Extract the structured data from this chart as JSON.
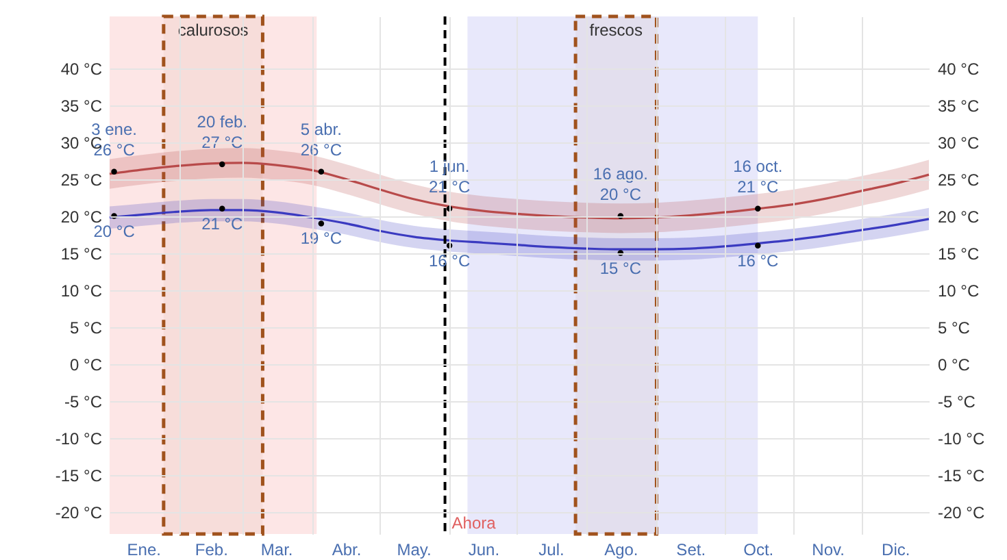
{
  "chart_data": {
    "type": "line",
    "x": [
      "--01-01",
      "--01-16",
      "--02-01",
      "--02-15",
      "--03-01",
      "--03-16",
      "--04-01",
      "--04-16",
      "--05-01",
      "--05-16",
      "--06-01",
      "--06-16",
      "--07-01",
      "--07-16",
      "--08-01",
      "--08-16",
      "--09-01",
      "--09-16",
      "--10-01",
      "--10-16",
      "--11-01",
      "--11-16",
      "--12-01",
      "--12-16",
      "--12-31"
    ],
    "series": [
      {
        "color": "#b84a4a",
        "values": [
          25.7,
          26.3,
          26.8,
          27.1,
          27.2,
          26.9,
          26.2,
          25.0,
          23.6,
          22.3,
          21.3,
          20.7,
          20.3,
          20.0,
          19.8,
          19.7,
          19.8,
          20.1,
          20.5,
          21.0,
          21.6,
          22.4,
          23.4,
          24.4,
          25.6
        ],
        "lower": [
          23.7,
          24.3,
          24.8,
          25.1,
          25.2,
          24.9,
          24.2,
          23.0,
          21.6,
          20.3,
          19.3,
          18.7,
          18.3,
          18.0,
          17.8,
          17.7,
          17.8,
          18.1,
          18.5,
          19.0,
          19.6,
          20.4,
          21.4,
          22.4,
          23.6
        ],
        "upper": [
          27.7,
          28.3,
          28.8,
          29.1,
          29.2,
          28.9,
          28.2,
          27.0,
          25.6,
          24.3,
          23.3,
          22.7,
          22.3,
          22.0,
          21.8,
          21.7,
          21.8,
          22.1,
          22.5,
          23.0,
          23.6,
          24.4,
          25.4,
          26.4,
          27.6
        ]
      },
      {
        "color": "#3a3ac0",
        "values": [
          19.8,
          20.2,
          20.6,
          20.8,
          20.8,
          20.5,
          19.8,
          19.0,
          18.0,
          17.2,
          16.7,
          16.4,
          16.1,
          15.8,
          15.6,
          15.5,
          15.5,
          15.6,
          15.9,
          16.3,
          16.8,
          17.4,
          18.1,
          18.8,
          19.6
        ],
        "lower": [
          18.3,
          18.7,
          19.1,
          19.3,
          19.3,
          19.0,
          18.3,
          17.5,
          16.5,
          15.7,
          15.2,
          14.9,
          14.6,
          14.3,
          14.1,
          14.0,
          14.0,
          14.1,
          14.4,
          14.8,
          15.3,
          15.9,
          16.6,
          17.3,
          18.1
        ],
        "upper": [
          21.3,
          21.7,
          22.1,
          22.3,
          22.3,
          22.0,
          21.3,
          20.5,
          19.5,
          18.7,
          18.2,
          17.9,
          17.6,
          17.3,
          17.1,
          17.0,
          17.0,
          17.1,
          17.4,
          17.8,
          18.3,
          18.9,
          19.6,
          20.3,
          21.1
        ]
      },
      {
        "type": "scatter",
        "color": "#000000",
        "marker": "circle",
        "x": [
          "--01-03",
          "--02-20",
          "--04-05",
          "--06-01",
          "--08-16",
          "--10-16"
        ],
        "values": [
          26,
          27,
          26,
          21,
          20,
          21
        ]
      },
      {
        "type": "scatter",
        "color": "#000000",
        "marker": "circle",
        "x": [
          "--01-03",
          "--02-20",
          "--04-05",
          "--06-01",
          "--08-16",
          "--10-16"
        ],
        "values": [
          20,
          21,
          19,
          16,
          15,
          16
        ]
      }
    ],
    "xlim": [
      "--01-01",
      "--12-31"
    ],
    "xticks": [
      {
        "value": "--01-16",
        "label": "Ene."
      },
      {
        "value": "--02-01",
        "label": null
      },
      {
        "value": "--02-15",
        "label": "Feb."
      },
      {
        "value": "--03-01",
        "label": null
      },
      {
        "value": "--03-16",
        "label": "Mar."
      },
      {
        "value": "--04-01",
        "label": null
      },
      {
        "value": "--04-16",
        "label": "Abr."
      },
      {
        "value": "--05-01",
        "label": null
      },
      {
        "value": "--05-16",
        "label": "May."
      },
      {
        "value": "--06-01",
        "label": null
      },
      {
        "value": "--06-16",
        "label": "Jun."
      },
      {
        "value": "--07-01",
        "label": null
      },
      {
        "value": "--07-16",
        "label": "Jul."
      },
      {
        "value": "--08-01",
        "label": null
      },
      {
        "value": "--08-16",
        "label": "Ago."
      },
      {
        "value": "--09-01",
        "label": null
      },
      {
        "value": "--09-16",
        "label": "Set."
      },
      {
        "value": "--10-01",
        "label": null
      },
      {
        "value": "--10-16",
        "label": "Oct."
      },
      {
        "value": "--11-01",
        "label": null
      },
      {
        "value": "--11-16",
        "label": "Nov."
      },
      {
        "value": "--12-01",
        "label": null
      },
      {
        "value": "--12-16",
        "label": "Dic."
      }
    ],
    "ylim": [
      -23,
      47
    ],
    "yticks": [
      {
        "value": -20,
        "label": "-20 °C"
      },
      {
        "value": -15,
        "label": "-15 °C"
      },
      {
        "value": -10,
        "label": "-10 °C"
      },
      {
        "value": -5,
        "label": "-5 °C"
      },
      {
        "value": 0,
        "label": "0 °C"
      },
      {
        "value": 5,
        "label": "5 °C"
      },
      {
        "value": 10,
        "label": "10 °C"
      },
      {
        "value": 15,
        "label": "15 °C"
      },
      {
        "value": 20,
        "label": "20 °C"
      },
      {
        "value": 25,
        "label": "25 °C"
      },
      {
        "value": 30,
        "label": "30 °C"
      },
      {
        "value": 35,
        "label": "35 °C"
      },
      {
        "value": 40,
        "label": "40 °C"
      }
    ],
    "y2lim": [
      -23,
      47
    ],
    "y2ticks": [
      {
        "value": -20,
        "label": "-20 °C"
      },
      {
        "value": -15,
        "label": "-15 °C"
      },
      {
        "value": -10,
        "label": "-10 °C"
      },
      {
        "value": -5,
        "label": "-5 °C"
      },
      {
        "value": 0,
        "label": "0 °C"
      },
      {
        "value": 5,
        "label": "5 °C"
      },
      {
        "value": 10,
        "label": "10 °C"
      },
      {
        "value": 15,
        "label": "15 °C"
      },
      {
        "value": 20,
        "label": "20 °C"
      },
      {
        "value": 25,
        "label": "25 °C"
      },
      {
        "value": 30,
        "label": "30 °C"
      },
      {
        "value": 35,
        "label": "35 °C"
      },
      {
        "value": 40,
        "label": "40 °C"
      }
    ],
    "grid": true,
    "bands": [
      {
        "axis": "x",
        "from": "--01-01",
        "to": "--04-03",
        "color": "#fde6e6"
      },
      {
        "axis": "x",
        "from": "--06-09",
        "to": "--10-16",
        "color": "#e8e8fb"
      },
      {
        "axis": "x",
        "from": "--01-25",
        "to": "--03-10",
        "label": "calurosos",
        "color": "#a0521d"
      },
      {
        "axis": "x",
        "from": "--07-27",
        "to": "--09-01",
        "label": "frescos",
        "color": "#a0521d"
      }
    ],
    "ref_lines": [
      {
        "axis": "x",
        "value": "--05-30",
        "label": "Ahora",
        "color": "#000000",
        "line_style": "dashed"
      }
    ],
    "annotations": [
      {
        "text": "3 ene.\n26 °C",
        "x": "--01-03",
        "y": 26
      },
      {
        "text": "20 feb.\n27 °C",
        "x": "--02-20",
        "y": 27
      },
      {
        "text": "5 abr.\n26 °C",
        "x": "--04-05",
        "y": 26
      },
      {
        "text": "1 jun.\n21 °C",
        "x": "--06-01",
        "y": 21
      },
      {
        "text": "16 ago.\n20 °C",
        "x": "--08-16",
        "y": 20
      },
      {
        "text": "16 oct.\n21 °C",
        "x": "--10-16",
        "y": 21
      },
      {
        "text": "20 °C",
        "x": "--01-03",
        "y": 20
      },
      {
        "text": "21 °C",
        "x": "--02-20",
        "y": 21
      },
      {
        "text": "19 °C",
        "x": "--04-05",
        "y": 19
      },
      {
        "text": "16 °C",
        "x": "--06-01",
        "y": 16
      },
      {
        "text": "15 °C",
        "x": "--08-16",
        "y": 15
      },
      {
        "text": "16 °C",
        "x": "--10-16",
        "y": 16
      }
    ]
  }
}
